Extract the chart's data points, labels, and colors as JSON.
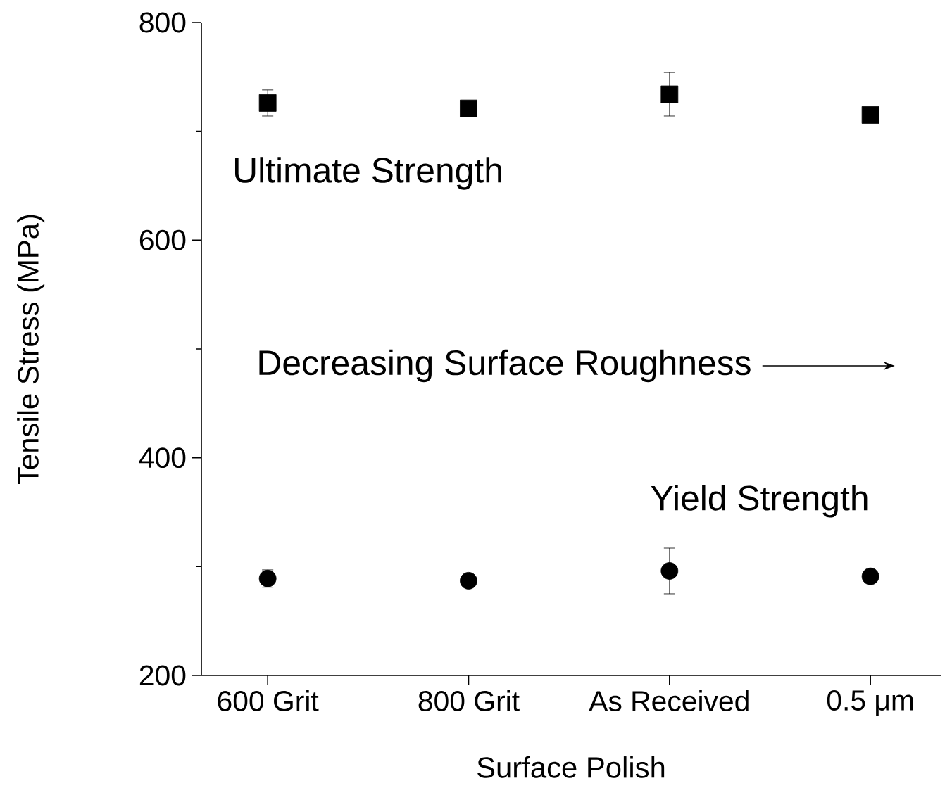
{
  "chart_data": {
    "type": "scatter",
    "xlabel": "Surface Polish",
    "ylabel": "Tensile Stress (MPa)",
    "categories": [
      "600 Grit",
      "800 Grit",
      "As Received",
      "0.5 μm"
    ],
    "series": [
      {
        "name": "Ultimate Strength",
        "color": "#000000",
        "marker": "square",
        "values": [
          726,
          721,
          734,
          715
        ],
        "errors": [
          12,
          null,
          20,
          null
        ]
      },
      {
        "name": "Yield Strength",
        "color": "#000000",
        "marker": "circle",
        "values": [
          289,
          287,
          296,
          291
        ],
        "errors": [
          8,
          null,
          21,
          null
        ]
      }
    ],
    "annotations": [
      "Decreasing Surface Roughness"
    ],
    "ylim": [
      200,
      800
    ],
    "yticks": [
      200,
      400,
      600,
      800
    ],
    "grid": false
  }
}
